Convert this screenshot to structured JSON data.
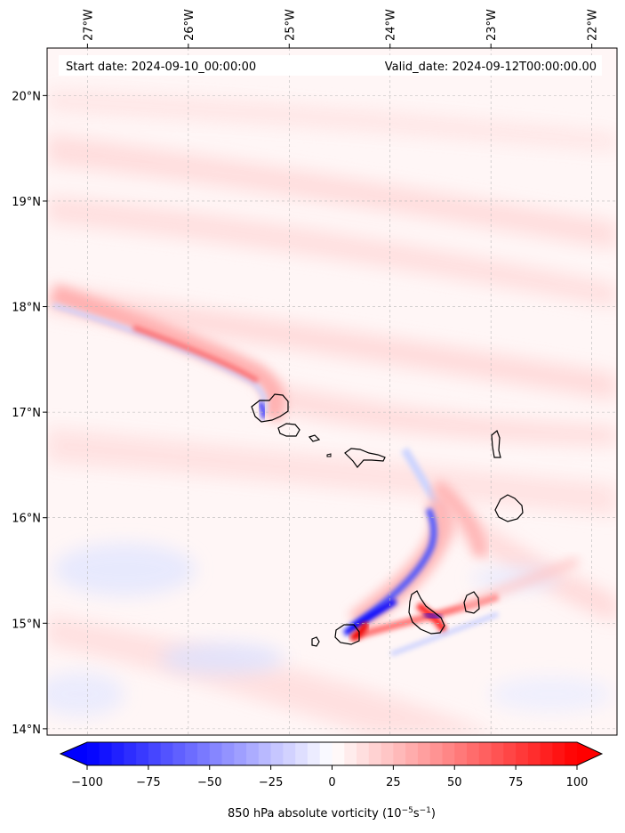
{
  "header": {
    "start_date": "Start date: 2024-09-10_00:00:00",
    "valid_date": "Valid_date: 2024-09-12T00:00:00.00"
  },
  "map": {
    "lon_range": [
      -27.4,
      -21.75
    ],
    "lat_range": [
      13.94,
      20.45
    ],
    "lon_ticks": [
      {
        "value": -27,
        "label": "27°W"
      },
      {
        "value": -26,
        "label": "26°W"
      },
      {
        "value": -25,
        "label": "25°W"
      },
      {
        "value": -24,
        "label": "24°W"
      },
      {
        "value": -23,
        "label": "23°W"
      },
      {
        "value": -22,
        "label": "22°W"
      }
    ],
    "lat_ticks": [
      {
        "value": 20,
        "label": "20°N"
      },
      {
        "value": 19,
        "label": "19°N"
      },
      {
        "value": 18,
        "label": "18°N"
      },
      {
        "value": 17,
        "label": "17°N"
      },
      {
        "value": 16,
        "label": "16°N"
      },
      {
        "value": 15,
        "label": "15°N"
      },
      {
        "value": 14,
        "label": "14°N"
      }
    ],
    "grid": true,
    "islands": [
      {
        "name": "Santo Antao",
        "lon": -24.95,
        "lat": 17.0
      },
      {
        "name": "Sao Vicente",
        "lon": -24.95,
        "lat": 16.84
      },
      {
        "name": "Santa Luzia",
        "lon": -24.74,
        "lat": 16.76
      },
      {
        "name": "Sao Nicolau",
        "lon": -24.28,
        "lat": 16.6
      },
      {
        "name": "Sal",
        "lon": -22.94,
        "lat": 16.71
      },
      {
        "name": "Boa Vista",
        "lon": -22.83,
        "lat": 16.09
      },
      {
        "name": "Maio",
        "lon": -23.17,
        "lat": 15.2
      },
      {
        "name": "Santiago",
        "lon": -23.6,
        "lat": 15.08
      },
      {
        "name": "Fogo",
        "lon": -24.38,
        "lat": 14.92
      },
      {
        "name": "Brava",
        "lon": -24.71,
        "lat": 14.85
      }
    ]
  },
  "colorbar": {
    "min": -100,
    "max": 100,
    "ticks": [
      {
        "value": -100,
        "label": "−100"
      },
      {
        "value": -75,
        "label": "−75"
      },
      {
        "value": -50,
        "label": "−50"
      },
      {
        "value": -25,
        "label": "−25"
      },
      {
        "value": 0,
        "label": "0"
      },
      {
        "value": 25,
        "label": "25"
      },
      {
        "value": 50,
        "label": "50"
      },
      {
        "value": 75,
        "label": "75"
      },
      {
        "value": 100,
        "label": "100"
      }
    ],
    "label_main": "850 hPa absolute vorticity (10",
    "label_exp1": "−5",
    "label_mid": "s",
    "label_exp2": "−1",
    "label_end": ")",
    "colors": {
      "negative": "#0000ff",
      "zero": "#ffffff",
      "positive": "#ff0000"
    }
  }
}
